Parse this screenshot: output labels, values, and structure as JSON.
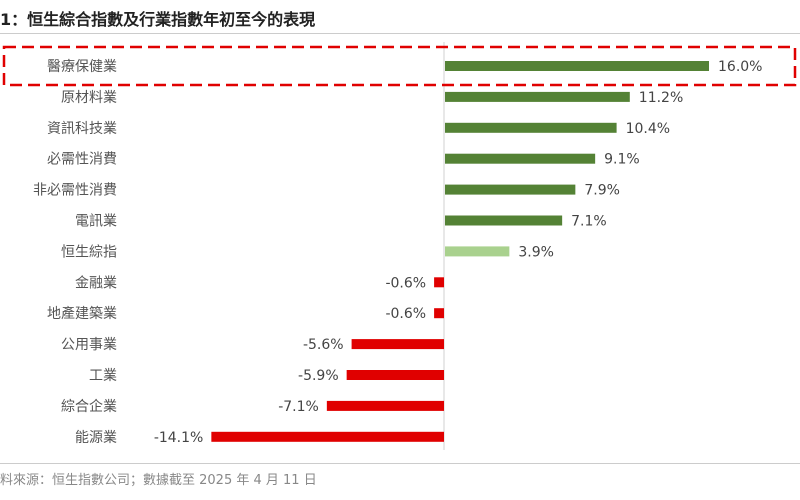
{
  "title": "1：恒生綜合指數及行業指數年初至今的表現",
  "source": "料來源：恒生指數公司；數據截至 2025 年 4 月 11 日",
  "colors": {
    "positive": "#548235",
    "index": "#a9d18e",
    "negative": "#e00000",
    "highlight_box": "#e00000"
  },
  "chart_data": {
    "type": "bar",
    "orientation": "horizontal",
    "categories": [
      "醫療保健業",
      "原材料業",
      "資訊科技業",
      "必需性消費",
      "非必需性消費",
      "電訊業",
      "恒生綜指",
      "金融業",
      "地產建築業",
      "公用事業",
      "工業",
      "綜合企業",
      "能源業"
    ],
    "values": [
      16.0,
      11.2,
      10.4,
      9.1,
      7.9,
      7.1,
      3.9,
      -0.6,
      -0.6,
      -5.6,
      -5.9,
      -7.1,
      -14.1
    ],
    "value_labels": [
      "16.0%",
      "11.2%",
      "10.4%",
      "9.1%",
      "7.9%",
      "7.1%",
      "3.9%",
      "-0.6%",
      "-0.6%",
      "-5.6%",
      "-5.9%",
      "-7.1%",
      "-14.1%"
    ],
    "highlighted": "醫療保健業",
    "index_category": "恒生綜指",
    "grid": false
  }
}
